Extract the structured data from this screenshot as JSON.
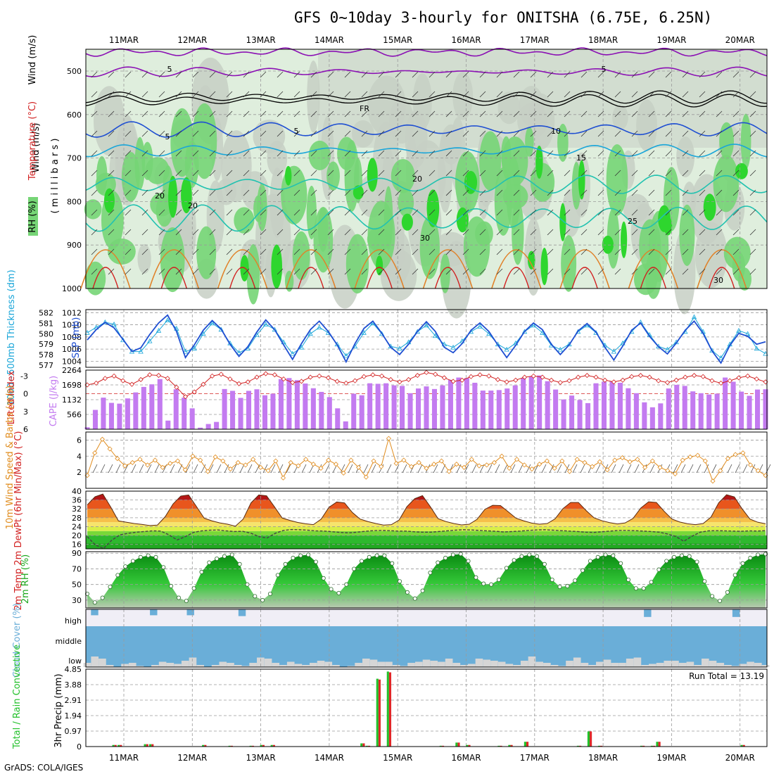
{
  "title": "GFS 0~10day 3-hourly for ONITSHA (6.75E, 6.25N)",
  "footer": "GrADS: COLA/IGES",
  "dates": [
    "11MAR",
    "12MAR",
    "13MAR",
    "14MAR",
    "15MAR",
    "16MAR",
    "17MAR",
    "18MAR",
    "19MAR",
    "20MAR"
  ],
  "colors": {
    "rh_light": "#dfeedd",
    "rh_mid": "#c7cfc4",
    "rh_green": "#76d576",
    "rh_bright": "#2ed62e",
    "purple": "#8b11b4",
    "blue": "#1f4fd2",
    "cyan": "#1aa6d9",
    "teal": "#22c2b0",
    "orange": "#e0822a",
    "red": "#d22020",
    "cape": "#c37bf0",
    "wind": "#e08c1e",
    "cloud_blue": "#6aaed8",
    "cloud_grey": "#d6d6d6",
    "precip_green": "#22c02a",
    "precip_red": "#e02828"
  },
  "panels": {
    "upper_air": {
      "labels": {
        "rh": "RH (%)",
        "temperature": "Temperature (°C)",
        "wind": "Wind (m/s)",
        "units": "( m i l l i b a r s )"
      },
      "pressure_ticks": [
        "500",
        "600",
        "700",
        "800",
        "900",
        "1000"
      ],
      "contour_labels": [
        "5",
        "5",
        "FR",
        "5",
        "5",
        "10",
        "15",
        "20",
        "20",
        "20",
        "25",
        "30",
        "30"
      ]
    },
    "slp": {
      "left_label": "1000~500mb Thickness (dm)",
      "right_label": "SLP (mb)",
      "left_ticks": [
        "582",
        "581",
        "580",
        "579",
        "578",
        "577"
      ],
      "right_ticks": [
        "1012",
        "1010",
        "1008",
        "1006",
        "1004"
      ]
    },
    "cape": {
      "left_label": "Lifted Index",
      "right_label": "CAPE (J/kg)",
      "left_ticks": [
        "-3",
        "0",
        "3",
        "6"
      ],
      "right_ticks": [
        "2264",
        "1698",
        "1132",
        "566"
      ]
    },
    "wind10m": {
      "label": "10m Wind Speed & Barbs (m/s)",
      "ticks": [
        "6",
        "4",
        "2"
      ]
    },
    "temp2m": {
      "label": "2m Temp 2m DewPt (6hr Min/Max) (°C)",
      "ticks": [
        "40",
        "36",
        "32",
        "28",
        "24",
        "20",
        "16"
      ]
    },
    "rh2m": {
      "label": "2m RH (%)",
      "ticks": [
        "90",
        "70",
        "50",
        "30"
      ]
    },
    "cloud": {
      "label": "Cloud Cover (%)",
      "levels": [
        "high",
        "middle",
        "low"
      ]
    },
    "precip": {
      "label": "Total / Rain Convective",
      "axis_label": "3hr Precip (mm)",
      "ticks": [
        "4.85",
        "3.88",
        "2.91",
        "1.94",
        "0.97",
        "0"
      ],
      "run_total": "Run Total = 13.19"
    }
  },
  "chart_data": {
    "type": "meteogram",
    "x": "3-hourly steps from 10MAR 15Z to 20MAR 09Z (dates label 12Z)",
    "slp_mb": [
      1007.5,
      1009.2,
      1010.4,
      1009.5,
      1007.6,
      1005.6,
      1006.2,
      1008.4,
      1010.3,
      1011.6,
      1008.9,
      1004.6,
      1006.7,
      1009.1,
      1010.7,
      1009.3,
      1006.8,
      1004.8,
      1006.4,
      1008.8,
      1010.8,
      1009.2,
      1006.7,
      1004.3,
      1006.9,
      1009.2,
      1010.6,
      1008.9,
      1006.7,
      1003.9,
      1006.9,
      1009.4,
      1010.6,
      1008.6,
      1006.3,
      1005.1,
      1006.8,
      1008.9,
      1010.5,
      1008.9,
      1006.3,
      1005.4,
      1006.9,
      1009.1,
      1010.3,
      1008.9,
      1006.7,
      1004.6,
      1006.6,
      1008.9,
      1010.3,
      1009.2,
      1006.8,
      1005.1,
      1006.7,
      1009.0,
      1010.2,
      1008.8,
      1006.3,
      1004.2,
      1006.5,
      1009.1,
      1010.3,
      1008.1,
      1006.4,
      1005.2,
      1007.0,
      1009.1,
      1010.6,
      1008.6,
      1005.7,
      1003.7,
      1006.6,
      1008.6,
      1008.1,
      1006.8,
      1007.2
    ],
    "thickness_dm": [
      580.1,
      580.6,
      581.1,
      580.9,
      579.4,
      578.3,
      578.3,
      579.3,
      580.3,
      581.3,
      580.5,
      578.3,
      578.6,
      580.0,
      581.0,
      580.4,
      579.1,
      578.2,
      578.6,
      579.9,
      580.9,
      580.4,
      579.2,
      578.1,
      578.7,
      580.0,
      580.6,
      580.1,
      579.0,
      577.9,
      578.8,
      580.1,
      581.0,
      580.0,
      578.8,
      578.6,
      579.2,
      580.2,
      580.8,
      579.8,
      579.0,
      578.7,
      579.3,
      580.2,
      580.7,
      580.0,
      579.0,
      578.5,
      579.1,
      580.2,
      580.8,
      580.1,
      578.9,
      578.5,
      579.0,
      580.2,
      580.8,
      580.1,
      578.9,
      578.3,
      579.1,
      580.2,
      581.1,
      579.9,
      578.8,
      578.5,
      579.2,
      580.2,
      581.6,
      580.2,
      578.4,
      577.7,
      579.0,
      580.3,
      580.0,
      578.6,
      578.1
    ],
    "lifted_index": [
      -1.5,
      -1.8,
      -2.6,
      -3.0,
      -2.2,
      -1.6,
      -2.4,
      -3.2,
      -3.1,
      -2.6,
      -1.1,
      0.5,
      -0.3,
      -1.6,
      -3.0,
      -3.3,
      -2.5,
      -1.7,
      -2.0,
      -2.8,
      -3.4,
      -3.2,
      -2.5,
      -1.9,
      -2.1,
      -2.8,
      -3.0,
      -2.7,
      -2.1,
      -1.8,
      -2.2,
      -2.9,
      -3.2,
      -3.0,
      -2.4,
      -2.0,
      -2.4,
      -3.1,
      -3.6,
      -3.3,
      -2.7,
      -2.1,
      -2.3,
      -2.9,
      -3.2,
      -3.0,
      -2.4,
      -2.0,
      -2.3,
      -2.8,
      -3.0,
      -2.8,
      -2.3,
      -1.9,
      -2.2,
      -2.8,
      -3.1,
      -2.8,
      -2.3,
      -2.0,
      -2.3,
      -2.9,
      -3.1,
      -2.8,
      -2.2,
      -1.9,
      -2.3,
      -2.8,
      -3.1,
      -2.9,
      -2.2,
      -1.8,
      -2.2,
      -2.7,
      -3.0,
      -2.5,
      -2.0
    ],
    "cape_jkg": [
      75,
      740,
      1210,
      1010,
      980,
      1180,
      1410,
      1620,
      1720,
      1920,
      330,
      1530,
      1210,
      800,
      60,
      200,
      280,
      1540,
      1470,
      1200,
      1470,
      1530,
      1300,
      1360,
      1920,
      1960,
      1880,
      1750,
      1570,
      1430,
      1230,
      800,
      300,
      1360,
      1300,
      1760,
      1740,
      1760,
      1680,
      1660,
      1380,
      1560,
      1640,
      1540,
      1680,
      1890,
      1980,
      1960,
      1780,
      1480,
      1480,
      1500,
      1560,
      1680,
      1960,
      2010,
      2060,
      1840,
      1520,
      1140,
      1290,
      1120,
      1000,
      1760,
      1820,
      1840,
      1780,
      1570,
      1380,
      1030,
      840,
      990,
      1560,
      1700,
      1660,
      1450,
      1380,
      1330,
      1360,
      1980,
      1820,
      1440,
      1280,
      1520,
      1530
    ],
    "wind10m_ms": [
      1.6,
      4.4,
      6.1,
      4.9,
      3.7,
      2.8,
      3.2,
      3.6,
      2.9,
      3.5,
      2.6,
      3.1,
      3.4,
      2.3,
      4.0,
      3.5,
      2.1,
      3.9,
      3.4,
      2.4,
      3.2,
      2.9,
      3.6,
      2.6,
      2.2,
      3.4,
      1.3,
      3.2,
      2.8,
      3.6,
      3.0,
      2.5,
      3.5,
      3.0,
      1.9,
      3.5,
      2.6,
      1.4,
      3.4,
      2.7,
      6.2,
      3.1,
      3.5,
      2.7,
      3.2,
      2.5,
      3.0,
      3.4,
      2.1,
      3.0,
      2.6,
      3.6,
      2.8,
      2.9,
      3.2,
      4.0,
      2.5,
      3.6,
      2.9,
      2.4,
      3.0,
      3.4,
      2.5,
      3.4,
      2.1,
      3.6,
      3.2,
      2.7,
      3.3,
      2.3,
      3.5,
      3.8,
      3.3,
      3.6,
      2.6,
      3.4,
      2.6,
      2.2,
      1.8,
      3.5,
      3.9,
      4.1,
      3.4,
      0.9,
      2.2,
      3.7,
      4.2,
      4.4,
      2.9,
      2.2,
      1.6
    ],
    "temp2m_c": [
      33.8,
      37.5,
      38.7,
      32.9,
      26.6,
      26.0,
      25.4,
      25.0,
      24.5,
      24.7,
      28.5,
      34.2,
      37.8,
      38.3,
      33.1,
      27.8,
      26.6,
      25.7,
      25.1,
      24.2,
      27.4,
      34.7,
      38.3,
      37.9,
      33.0,
      27.9,
      26.8,
      25.9,
      25.3,
      24.9,
      27.4,
      32.7,
      35.1,
      34.7,
      30.4,
      27.4,
      26.3,
      25.4,
      24.7,
      24.9,
      27.0,
      33.0,
      36.6,
      38.0,
      33.0,
      27.6,
      26.3,
      25.4,
      24.8,
      25.1,
      27.3,
      31.8,
      33.6,
      33.5,
      30.7,
      27.8,
      26.6,
      25.6,
      25.1,
      25.4,
      27.5,
      32.1,
      34.9,
      34.9,
      31.2,
      28.0,
      26.7,
      25.8,
      25.2,
      25.7,
      27.7,
      32.4,
      35.2,
      34.9,
      30.9,
      27.4,
      26.1,
      25.3,
      24.9,
      25.4,
      28.3,
      34.8,
      38.4,
      37.4,
      32.0,
      27.4,
      26.0,
      25.3
    ],
    "dewpoint2m_c": [
      19.5,
      15.7,
      14.2,
      17.9,
      20.3,
      21.0,
      21.5,
      21.8,
      22.1,
      22.0,
      20.3,
      18.0,
      19.5,
      21.4,
      22.1,
      22.4,
      22.5,
      22.1,
      21.8,
      21.9,
      21.1,
      19.5,
      18.9,
      21.0,
      22.3,
      22.7,
      22.6,
      22.4,
      22.1,
      22.0,
      21.7,
      21.4,
      21.2,
      21.5,
      21.9,
      22.2,
      22.3,
      22.2,
      22.0,
      22.0,
      21.7,
      21.5,
      21.5,
      21.8,
      22.1,
      22.4,
      22.6,
      22.5,
      22.3,
      22.1,
      21.9,
      21.6,
      21.8,
      22.0,
      22.3,
      22.5,
      22.6,
      22.4,
      22.2,
      22.0,
      21.8,
      21.5,
      21.4,
      21.7,
      22.0,
      22.3,
      22.3,
      22.2,
      22.0,
      21.8,
      21.5,
      20.7,
      19.6,
      17.4,
      19.7,
      21.5,
      22.1,
      22.2,
      22.1,
      22.0,
      21.9,
      22.1,
      22.0,
      22.2
    ],
    "rh2m_pct": [
      38,
      27,
      33,
      47,
      62,
      73,
      80,
      85,
      87,
      85,
      72,
      48,
      33,
      29,
      45,
      66,
      78,
      83,
      86,
      88,
      76,
      50,
      35,
      30,
      38,
      62,
      76,
      84,
      87,
      88,
      79,
      58,
      44,
      39,
      50,
      70,
      80,
      85,
      87,
      87,
      77,
      54,
      40,
      32,
      42,
      65,
      78,
      84,
      88,
      89,
      80,
      59,
      51,
      50,
      56,
      71,
      81,
      86,
      88,
      86,
      76,
      56,
      47,
      48,
      55,
      68,
      80,
      85,
      88,
      87,
      77,
      56,
      45,
      45,
      53,
      69,
      80,
      85,
      87,
      86,
      79,
      54,
      35,
      29,
      40,
      62,
      77,
      84,
      88,
      89
    ],
    "cloud_high_pct": [
      0,
      35,
      0,
      0,
      0,
      0,
      0,
      0,
      0,
      35,
      0,
      0,
      0,
      0,
      35,
      0,
      0,
      0,
      0,
      0,
      0,
      40,
      0,
      0,
      0,
      0,
      0,
      0,
      0,
      0,
      0,
      0,
      0,
      0,
      0,
      0,
      0,
      0,
      0,
      0,
      0,
      0,
      0,
      0,
      0,
      0,
      0,
      0,
      0,
      0,
      0,
      0,
      0,
      0,
      0,
      0,
      0,
      0,
      0,
      0,
      0,
      0,
      0,
      0,
      0,
      0,
      0,
      0,
      0,
      0,
      0,
      0,
      0,
      0,
      0,
      0,
      45,
      0,
      0,
      0,
      0,
      0,
      0,
      0,
      0,
      0,
      0,
      0,
      45,
      0,
      0,
      0,
      0
    ],
    "cloud_mid_pct": [
      100,
      100,
      100,
      100,
      100,
      100,
      100,
      100,
      100,
      100,
      100,
      100,
      100,
      100,
      100,
      100,
      100,
      100,
      100,
      100,
      100,
      100,
      100,
      100,
      100,
      100,
      100,
      100,
      100,
      100,
      100,
      100,
      100,
      100,
      100,
      100,
      100,
      100,
      100,
      100,
      100,
      100,
      100,
      100,
      100,
      100,
      100,
      100,
      100,
      100,
      100,
      100,
      100,
      100,
      100,
      100,
      100,
      100,
      100,
      100,
      100,
      100,
      100,
      100,
      100,
      100,
      100,
      100,
      100,
      100,
      100,
      100,
      100,
      100,
      100,
      100,
      100,
      100,
      100,
      100,
      100,
      100,
      100,
      100,
      100,
      100,
      100,
      100,
      100,
      100,
      100
    ],
    "cloud_low_pct": [
      20,
      50,
      40,
      10,
      0,
      15,
      20,
      5,
      0,
      10,
      25,
      20,
      15,
      30,
      45,
      10,
      0,
      10,
      25,
      20,
      10,
      5,
      20,
      45,
      40,
      20,
      10,
      25,
      15,
      10,
      20,
      30,
      25,
      10,
      0,
      5,
      20,
      40,
      35,
      25,
      25,
      10,
      5,
      20,
      25,
      35,
      30,
      25,
      40,
      20,
      10,
      15,
      40,
      35,
      30,
      25,
      15,
      10,
      30,
      50,
      25,
      20,
      10,
      5,
      30,
      45,
      20,
      10,
      25,
      35,
      20,
      20,
      40,
      45,
      10,
      15,
      20,
      30,
      30,
      20,
      25,
      10,
      40,
      30,
      20,
      10,
      5,
      15,
      25,
      20,
      10
    ],
    "precip_total_mm": [
      0,
      0,
      0,
      0,
      0,
      0.1,
      0.1,
      0,
      0,
      0,
      0,
      0.15,
      0.15,
      0,
      0,
      0,
      0,
      0,
      0,
      0,
      0,
      0,
      0.1,
      0,
      0,
      0,
      0,
      0.05,
      0,
      0,
      0,
      0.05,
      0,
      0.1,
      0,
      0.1,
      0,
      0,
      0,
      0,
      0,
      0,
      0,
      0,
      0,
      0,
      0,
      0,
      0,
      0,
      0,
      0,
      0.2,
      0.05,
      0,
      4.25,
      0,
      4.7,
      0,
      0,
      0,
      0,
      0,
      0,
      0,
      0,
      0,
      0.05,
      0,
      0,
      0.25,
      0,
      0.1,
      0,
      0,
      0,
      0,
      0,
      0.05,
      0,
      0.1,
      0,
      0,
      0.3,
      0,
      0,
      0,
      0,
      0,
      0,
      0,
      0,
      0,
      0.05,
      0,
      0.95,
      0,
      0.05,
      0,
      0,
      0,
      0,
      0,
      0,
      0,
      0.05,
      0,
      0.05,
      0.3,
      0,
      0,
      0,
      0,
      0,
      0,
      0,
      0,
      0,
      0,
      0,
      0,
      0,
      0,
      0,
      0.1,
      0,
      0,
      0,
      0
    ],
    "precip_conv_mm": [
      0,
      0,
      0,
      0,
      0,
      0.1,
      0.1,
      0,
      0,
      0,
      0,
      0.15,
      0.15,
      0,
      0,
      0,
      0,
      0,
      0,
      0,
      0,
      0,
      0.1,
      0,
      0,
      0,
      0,
      0.05,
      0,
      0,
      0,
      0.05,
      0,
      0.1,
      0,
      0.1,
      0,
      0,
      0,
      0,
      0,
      0,
      0,
      0,
      0,
      0,
      0,
      0,
      0,
      0,
      0,
      0,
      0.2,
      0.05,
      0,
      4.2,
      0,
      4.65,
      0,
      0,
      0,
      0,
      0,
      0,
      0,
      0,
      0,
      0.05,
      0,
      0,
      0.25,
      0,
      0.1,
      0,
      0,
      0,
      0,
      0,
      0.05,
      0,
      0.1,
      0,
      0,
      0.3,
      0,
      0,
      0,
      0,
      0,
      0,
      0,
      0,
      0,
      0.05,
      0,
      0.95,
      0,
      0.05,
      0,
      0,
      0,
      0,
      0,
      0,
      0,
      0.05,
      0,
      0.05,
      0.3,
      0,
      0,
      0,
      0,
      0,
      0,
      0,
      0,
      0,
      0,
      0,
      0,
      0,
      0,
      0,
      0.1,
      0,
      0,
      0,
      0
    ]
  }
}
